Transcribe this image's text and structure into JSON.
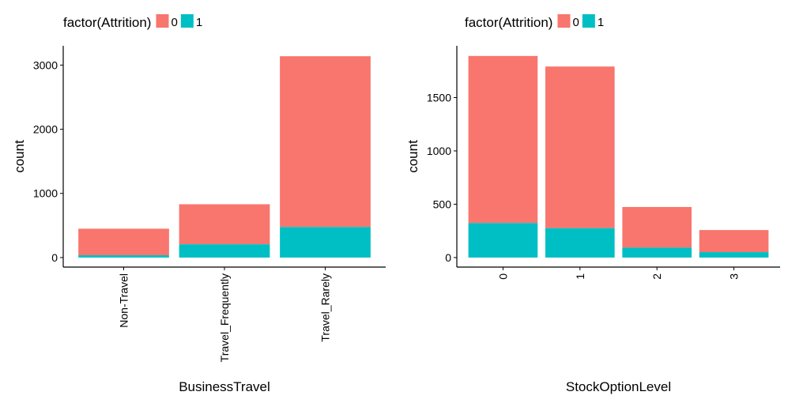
{
  "chart_data": [
    {
      "type": "bar",
      "stacked": true,
      "categories": [
        "Non-Travel",
        "Travel_Frequently",
        "Travel_Rarely"
      ],
      "series": [
        {
          "name": "0",
          "color": "#F8766D",
          "values": [
            414,
            624,
            2661
          ]
        },
        {
          "name": "1",
          "color": "#00BFC4",
          "values": [
            36,
            207,
            477
          ]
        }
      ],
      "xlabel": "BusinessTravel",
      "ylabel": "count",
      "ylim": [
        0,
        3300
      ],
      "yticks": [
        0,
        1000,
        2000,
        3000
      ],
      "x_tick_rotation": 90,
      "legend": {
        "title": "factor(Attrition)",
        "position": "top",
        "entries": [
          "0",
          "1"
        ]
      },
      "grid": false
    },
    {
      "type": "bar",
      "stacked": true,
      "categories": [
        "0",
        "1",
        "2",
        "3"
      ],
      "series": [
        {
          "name": "0",
          "color": "#F8766D",
          "values": [
            1566,
            1515,
            381,
            207
          ]
        },
        {
          "name": "1",
          "color": "#00BFC4",
          "values": [
            324,
            276,
            93,
            51
          ]
        }
      ],
      "xlabel": "StockOptionLevel",
      "ylabel": "count",
      "ylim": [
        0,
        1985
      ],
      "yticks": [
        0,
        500,
        1000,
        1500
      ],
      "x_tick_rotation": 90,
      "legend": {
        "title": "factor(Attrition)",
        "position": "top",
        "entries": [
          "0",
          "1"
        ]
      },
      "grid": false
    }
  ]
}
